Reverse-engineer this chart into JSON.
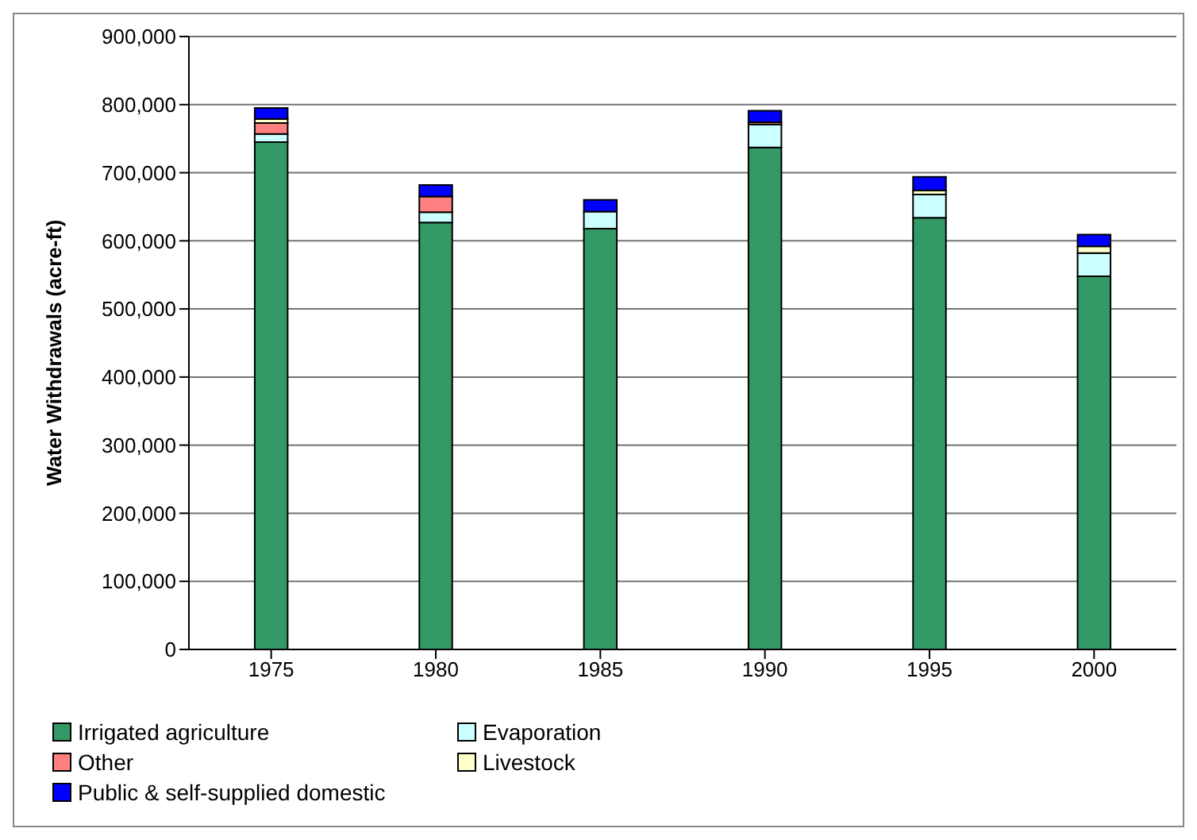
{
  "chart_data": {
    "type": "bar",
    "stacked": true,
    "ylabel": "Water Withdrawals (acre-ft)",
    "categories": [
      "1975",
      "1980",
      "1985",
      "1990",
      "1995",
      "2000"
    ],
    "series": [
      {
        "name": "Irrigated agriculture",
        "color": "#339966",
        "values": [
          745000,
          627000,
          618000,
          737000,
          634000,
          548000
        ]
      },
      {
        "name": "Evaporation",
        "color": "#ccffff",
        "values": [
          12000,
          15000,
          25000,
          34000,
          34000,
          34000
        ]
      },
      {
        "name": "Other",
        "color": "#ff8080",
        "values": [
          16000,
          23000,
          0,
          3000,
          0,
          0
        ]
      },
      {
        "name": "Livestock",
        "color": "#ffffcc",
        "values": [
          6000,
          null,
          null,
          null,
          6000,
          10000
        ]
      },
      {
        "name": "Public & self-supplied domestic",
        "color": "#0000ff",
        "values": [
          16000,
          17000,
          17000,
          17000,
          20000,
          17000
        ]
      }
    ],
    "ylim": [
      0,
      900000
    ],
    "yticks": [
      0,
      {
        "value": 100000,
        "label": "100,000"
      },
      {
        "value": 200000,
        "label": "200,000"
      },
      {
        "value": 300000,
        "label": "300,000"
      },
      {
        "value": 400000,
        "label": "400,000"
      },
      {
        "value": 500000,
        "label": "500,000"
      },
      {
        "value": 600000,
        "label": "600,000"
      },
      {
        "value": 700000,
        "label": "700,000"
      },
      {
        "value": 800000,
        "label": "800,000"
      },
      {
        "value": 900000,
        "label": "900,000"
      }
    ],
    "grid": "y",
    "legend": "bottom"
  }
}
